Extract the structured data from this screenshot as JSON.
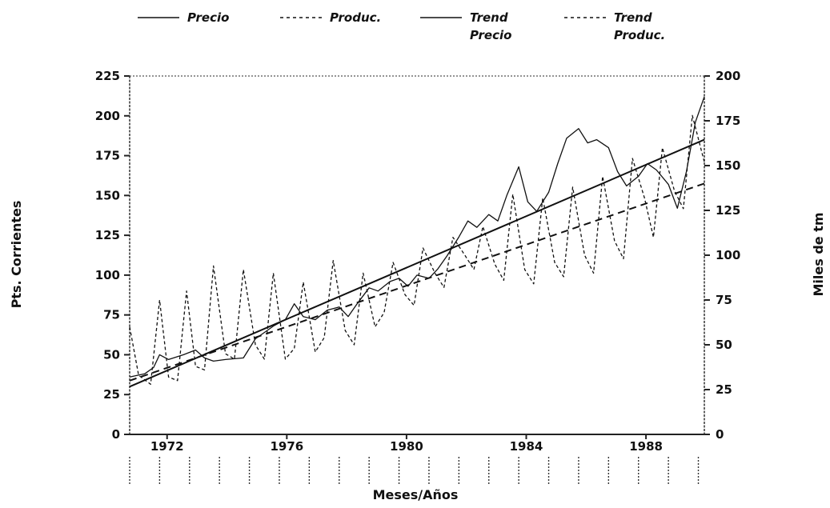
{
  "chart_data": {
    "type": "line",
    "xlabel": "Meses/Años",
    "ylabel_left": "Pts. Corrientes",
    "ylabel_right": "Miles de tm",
    "x_ticks": [
      "1972",
      "1976",
      "1980",
      "1984",
      "1988"
    ],
    "xlim": [
      1971,
      1990.2
    ],
    "ylim_left": [
      0,
      225
    ],
    "ylim_right": [
      0,
      200
    ],
    "y_ticks_left": [
      "0",
      "25",
      "50",
      "75",
      "100",
      "125",
      "150",
      "175",
      "200",
      "225"
    ],
    "y_ticks_right": [
      "0",
      "25",
      "50",
      "75",
      "100",
      "125",
      "150",
      "175",
      "200"
    ],
    "legend": [
      {
        "lines": [
          "Precio"
        ],
        "style": "solid"
      },
      {
        "lines": [
          "Produc."
        ],
        "style": "dashed"
      },
      {
        "lines": [
          "Trend",
          "Precio"
        ],
        "style": "solid"
      },
      {
        "lines": [
          "Trend",
          "Produc."
        ],
        "style": "dashed"
      }
    ],
    "series": [
      {
        "name": "Precio",
        "axis": "left",
        "style": "solid",
        "x": [
          1971.0,
          1971.5,
          1971.8,
          1972.0,
          1972.3,
          1972.8,
          1973.2,
          1973.5,
          1973.8,
          1974.2,
          1974.8,
          1975.2,
          1975.5,
          1975.8,
          1976.2,
          1976.5,
          1976.8,
          1977.2,
          1977.6,
          1978.0,
          1978.3,
          1978.6,
          1979.0,
          1979.3,
          1979.7,
          1980.0,
          1980.3,
          1980.6,
          1981.0,
          1981.3,
          1981.6,
          1982.0,
          1982.3,
          1982.6,
          1983.0,
          1983.3,
          1983.6,
          1984.0,
          1984.3,
          1984.6,
          1985.0,
          1985.3,
          1985.6,
          1986.0,
          1986.3,
          1986.6,
          1987.0,
          1987.3,
          1987.6,
          1988.0,
          1988.3,
          1988.6,
          1989.0,
          1989.3,
          1989.6,
          1989.9,
          1990.2
        ],
        "values": [
          36,
          38,
          42,
          50,
          47,
          50,
          53,
          48,
          46,
          47,
          48,
          60,
          64,
          68,
          72,
          82,
          74,
          72,
          78,
          80,
          74,
          82,
          92,
          90,
          96,
          98,
          93,
          100,
          98,
          104,
          112,
          124,
          134,
          130,
          138,
          134,
          150,
          168,
          146,
          140,
          152,
          170,
          186,
          192,
          183,
          185,
          180,
          165,
          156,
          162,
          170,
          166,
          157,
          142,
          165,
          196,
          212
        ]
      },
      {
        "name": "Produc.",
        "axis": "right",
        "style": "dashed",
        "x": [
          1971.0,
          1971.3,
          1971.7,
          1972.0,
          1972.3,
          1972.6,
          1972.9,
          1973.2,
          1973.5,
          1973.8,
          1974.2,
          1974.5,
          1974.8,
          1975.2,
          1975.5,
          1975.8,
          1976.2,
          1976.5,
          1976.8,
          1977.2,
          1977.5,
          1977.8,
          1978.2,
          1978.5,
          1978.8,
          1979.2,
          1979.5,
          1979.8,
          1980.2,
          1980.5,
          1980.8,
          1981.2,
          1981.5,
          1981.8,
          1982.2,
          1982.5,
          1982.8,
          1983.2,
          1983.5,
          1983.8,
          1984.2,
          1984.5,
          1984.8,
          1985.2,
          1985.5,
          1985.8,
          1986.2,
          1986.5,
          1986.8,
          1987.2,
          1987.5,
          1987.8,
          1988.2,
          1988.5,
          1988.8,
          1989.2,
          1989.5,
          1989.8,
          1990.2
        ],
        "values": [
          60,
          33,
          28,
          75,
          32,
          30,
          80,
          38,
          36,
          94,
          45,
          42,
          92,
          50,
          42,
          90,
          42,
          48,
          85,
          46,
          54,
          97,
          58,
          50,
          90,
          60,
          68,
          96,
          78,
          72,
          104,
          90,
          82,
          110,
          100,
          92,
          116,
          95,
          86,
          134,
          92,
          84,
          132,
          96,
          88,
          138,
          100,
          90,
          144,
          108,
          98,
          154,
          132,
          110,
          160,
          136,
          126,
          178,
          152
        ]
      },
      {
        "name": "Trend Precio",
        "axis": "left",
        "style": "solid",
        "x": [
          1971.0,
          1990.2
        ],
        "values": [
          30,
          185
        ]
      },
      {
        "name": "Trend Produc.",
        "axis": "right",
        "style": "dashed",
        "x": [
          1971.0,
          1990.2
        ],
        "values": [
          30,
          140
        ]
      }
    ],
    "grid": false,
    "legend_position": "top"
  }
}
